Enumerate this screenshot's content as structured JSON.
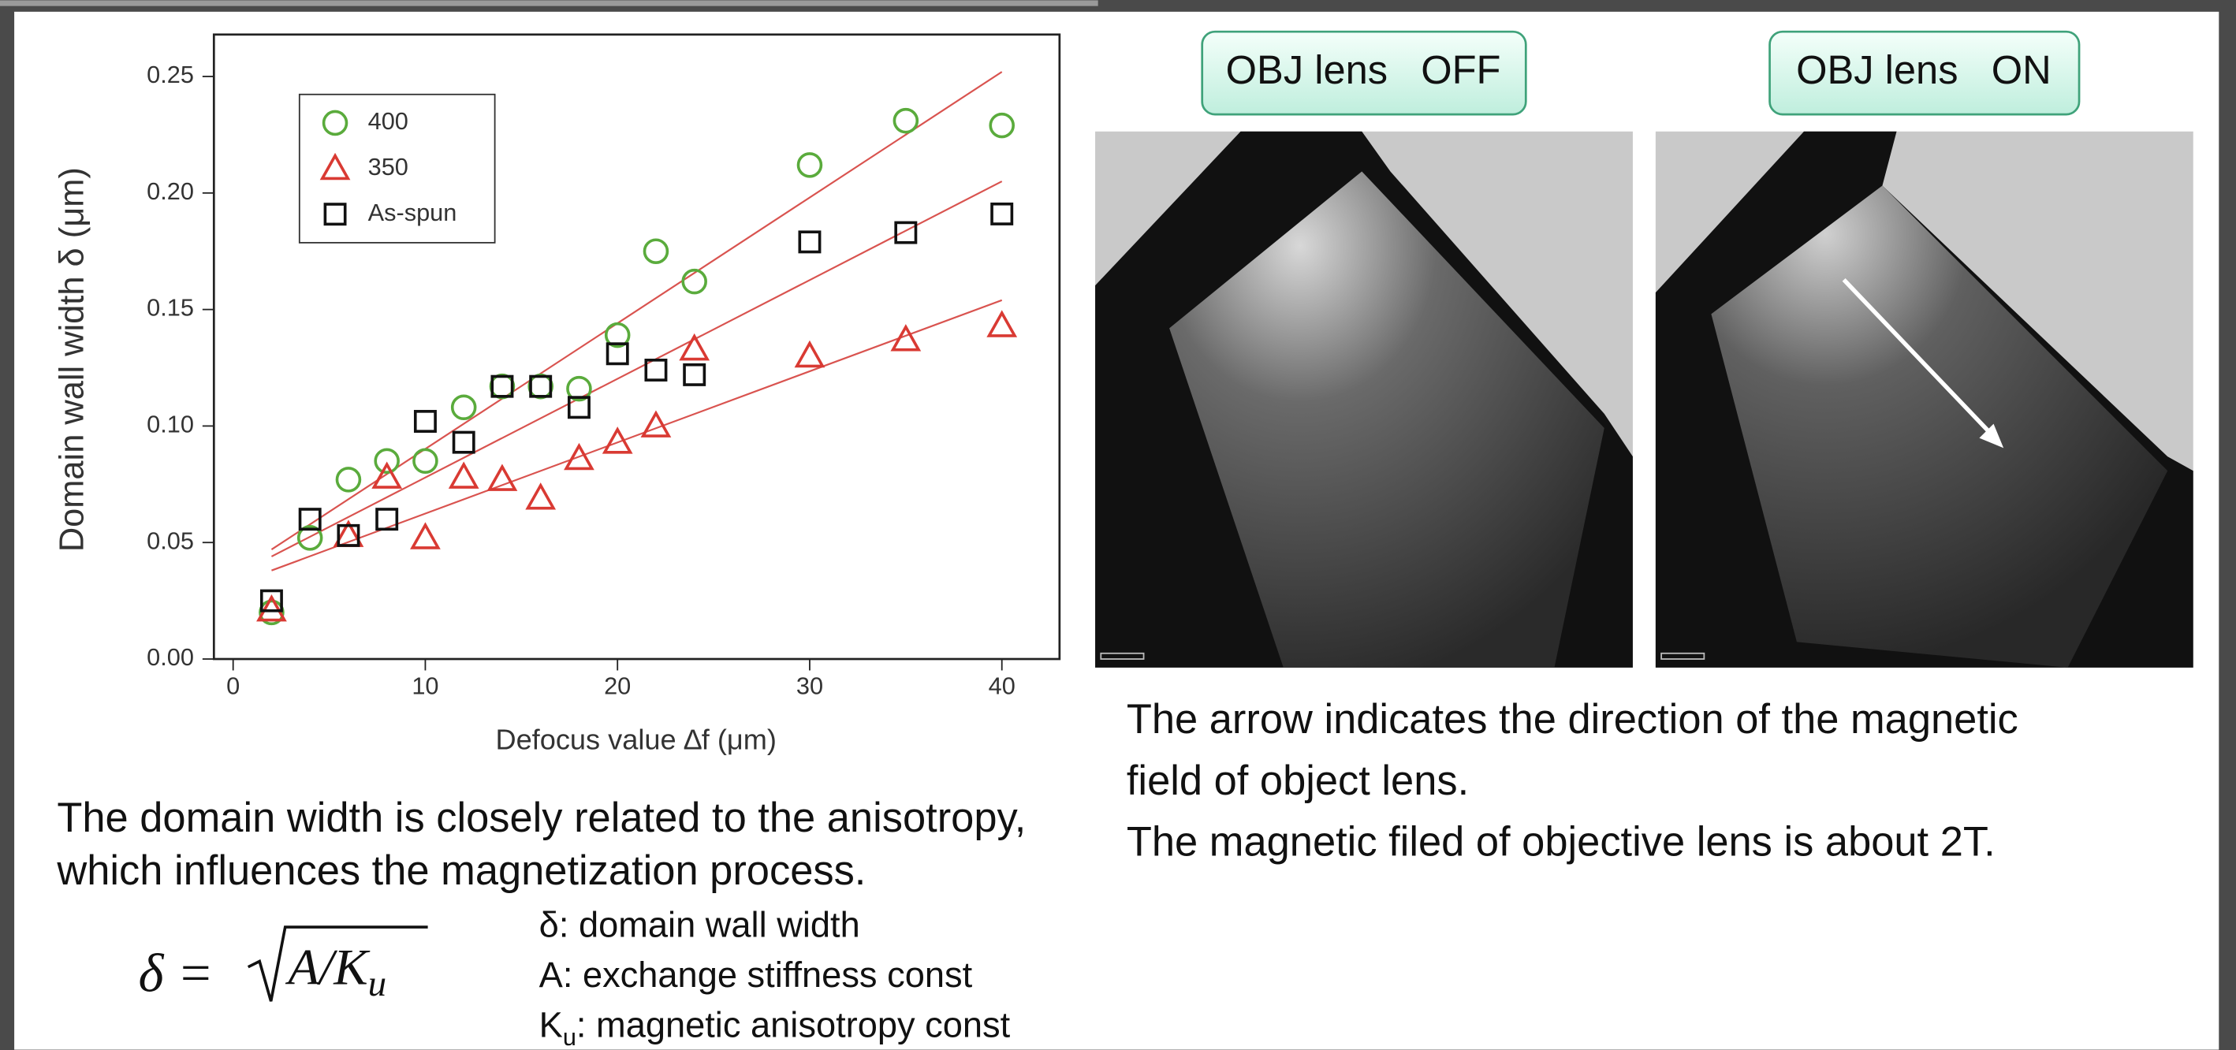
{
  "chart_data": {
    "type": "scatter",
    "x_label": "Defocus value ∆f (μm)",
    "y_label": "Domain wall width δ  (μm)",
    "xlim": [
      -1,
      43
    ],
    "ylim": [
      0,
      0.268
    ],
    "xticks": [
      0,
      10,
      20,
      30,
      40
    ],
    "yticks": [
      {
        "value": 0,
        "label": "0.00"
      },
      {
        "value": 0.05,
        "label": "0.05"
      },
      {
        "value": 0.1,
        "label": "0.10"
      },
      {
        "value": 0.15,
        "label": "0.15"
      },
      {
        "value": 0.2,
        "label": "0.20"
      },
      {
        "value": 0.25,
        "label": "0.25"
      }
    ],
    "fit_color": "#d9534f",
    "series": [
      {
        "name": "400",
        "color": "#5aab3c",
        "marker": "circle",
        "x": [
          2,
          4,
          6,
          8,
          10,
          12,
          14,
          16,
          18,
          20,
          22,
          24,
          30,
          35,
          40
        ],
        "values": [
          0.02,
          0.052,
          0.077,
          0.085,
          0.085,
          0.108,
          0.117,
          0.117,
          0.116,
          0.139,
          0.175,
          0.162,
          0.212,
          0.231,
          0.229
        ],
        "fit_x": [
          2,
          40
        ],
        "fit": [
          0.047,
          0.252
        ]
      },
      {
        "name": "350",
        "color": "#d93a33",
        "marker": "triangle",
        "x": [
          2,
          6,
          8,
          10,
          12,
          14,
          16,
          18,
          20,
          22,
          24,
          30,
          35,
          40
        ],
        "values": [
          0.021,
          0.053,
          0.078,
          0.052,
          0.078,
          0.077,
          0.069,
          0.086,
          0.093,
          0.1,
          0.133,
          0.13,
          0.137,
          0.143
        ],
        "fit_x": [
          2,
          40
        ],
        "fit": [
          0.038,
          0.154
        ]
      },
      {
        "name": "As-spun",
        "color": "#111111",
        "marker": "square",
        "x": [
          2,
          4,
          6,
          8,
          10,
          12,
          14,
          16,
          18,
          20,
          22,
          24,
          30,
          35,
          40
        ],
        "values": [
          0.025,
          0.06,
          0.053,
          0.06,
          0.102,
          0.093,
          0.117,
          0.117,
          0.108,
          0.131,
          0.124,
          0.122,
          0.179,
          0.183,
          0.191
        ],
        "fit_x": [
          2,
          40
        ],
        "fit": [
          0.044,
          0.205
        ]
      }
    ]
  },
  "left_text": [
    "The domain width is closely related to the anisotropy,",
    "which influences the magnetization process."
  ],
  "formula": {
    "lhs": "δ =",
    "radicand": "A/K",
    "sub": "u"
  },
  "definitions": {
    "delta": "δ: domain wall width",
    "a": "A: exchange stiffness const",
    "ku_k": "K",
    "ku_sub": "u",
    "ku_rest": ": magnetic anisotropy const"
  },
  "buttons": [
    "OBJ lens   OFF",
    "OBJ lens   ON"
  ],
  "right_text": [
    "The arrow indicates the direction of the magnetic",
    "field of object lens.",
    "The magnetic filed of objective lens is about 2T."
  ]
}
